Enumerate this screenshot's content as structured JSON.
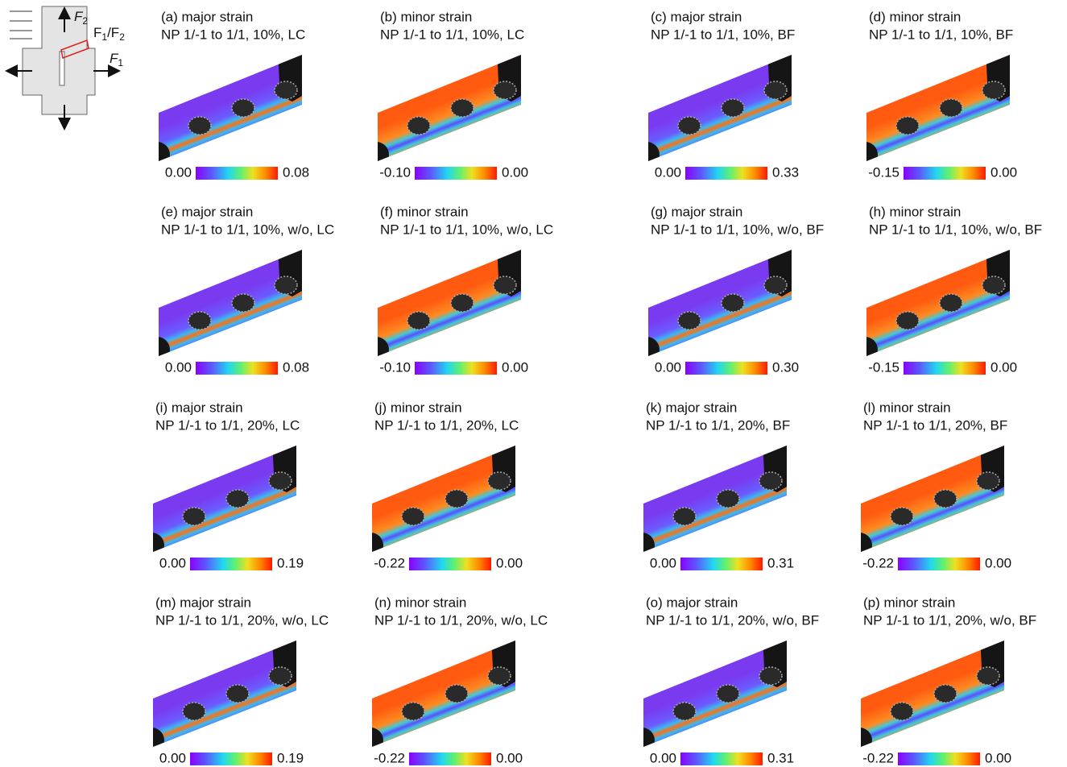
{
  "figure": {
    "inset": {
      "f2": [
        "F",
        "2"
      ],
      "ratio": [
        "F",
        "1",
        "/F",
        "2"
      ],
      "f1": [
        "F",
        "1"
      ]
    },
    "panels": [
      {
        "label": "(a) major strain",
        "condition": "NP 1/-1 to 1/1, 10%, LC",
        "scale_min": "0.00",
        "scale_max": "0.08"
      },
      {
        "label": "(b) minor strain",
        "condition": "NP 1/-1 to 1/1, 10%, LC",
        "scale_min": "-0.10",
        "scale_max": "0.00"
      },
      {
        "label": "(c) major strain",
        "condition": "NP 1/-1 to 1/1, 10%, BF",
        "scale_min": "0.00",
        "scale_max": "0.33"
      },
      {
        "label": "(d) minor strain",
        "condition": "NP 1/-1 to 1/1, 10%, BF",
        "scale_min": "-0.15",
        "scale_max": "0.00"
      },
      {
        "label": "(e) major strain",
        "condition": "NP 1/-1 to 1/1, 10%, w/o, LC",
        "scale_min": "0.00",
        "scale_max": "0.08"
      },
      {
        "label": "(f) minor strain",
        "condition": "NP 1/-1 to 1/1, 10%, w/o, LC",
        "scale_min": "-0.10",
        "scale_max": "0.00"
      },
      {
        "label": "(g) major strain",
        "condition": "NP 1/-1 to 1/1, 10%, w/o, BF",
        "scale_min": "0.00",
        "scale_max": "0.30"
      },
      {
        "label": "(h) minor strain",
        "condition": "NP 1/-1 to 1/1, 10%, w/o, BF",
        "scale_min": "-0.15",
        "scale_max": "0.00"
      },
      {
        "label": "(i) major strain",
        "condition": "NP 1/-1 to 1/1, 20%, LC",
        "scale_min": "0.00",
        "scale_max": "0.19"
      },
      {
        "label": "(j) minor strain",
        "condition": "NP 1/-1 to 1/1, 20%, LC",
        "scale_min": "-0.22",
        "scale_max": "0.00"
      },
      {
        "label": "(k) major strain",
        "condition": "NP 1/-1 to 1/1, 20%, BF",
        "scale_min": "0.00",
        "scale_max": "0.31"
      },
      {
        "label": "(l) minor strain",
        "condition": "NP 1/-1 to 1/1, 20%, BF",
        "scale_min": "-0.22",
        "scale_max": "0.00"
      },
      {
        "label": "(m) major strain",
        "condition": "NP 1/-1 to 1/1, 20%, w/o, LC",
        "scale_min": "0.00",
        "scale_max": "0.19"
      },
      {
        "label": "(n) minor strain",
        "condition": "NP 1/-1 to 1/1, 20%, w/o, LC",
        "scale_min": "-0.22",
        "scale_max": "0.00"
      },
      {
        "label": "(o) major strain",
        "condition": "NP 1/-1 to 1/1, 20%, w/o, BF",
        "scale_min": "0.00",
        "scale_max": "0.31"
      },
      {
        "label": "(p) minor strain",
        "condition": "NP 1/-1 to 1/1, 20%, w/o, BF",
        "scale_min": "-0.22",
        "scale_max": "0.00"
      }
    ]
  }
}
